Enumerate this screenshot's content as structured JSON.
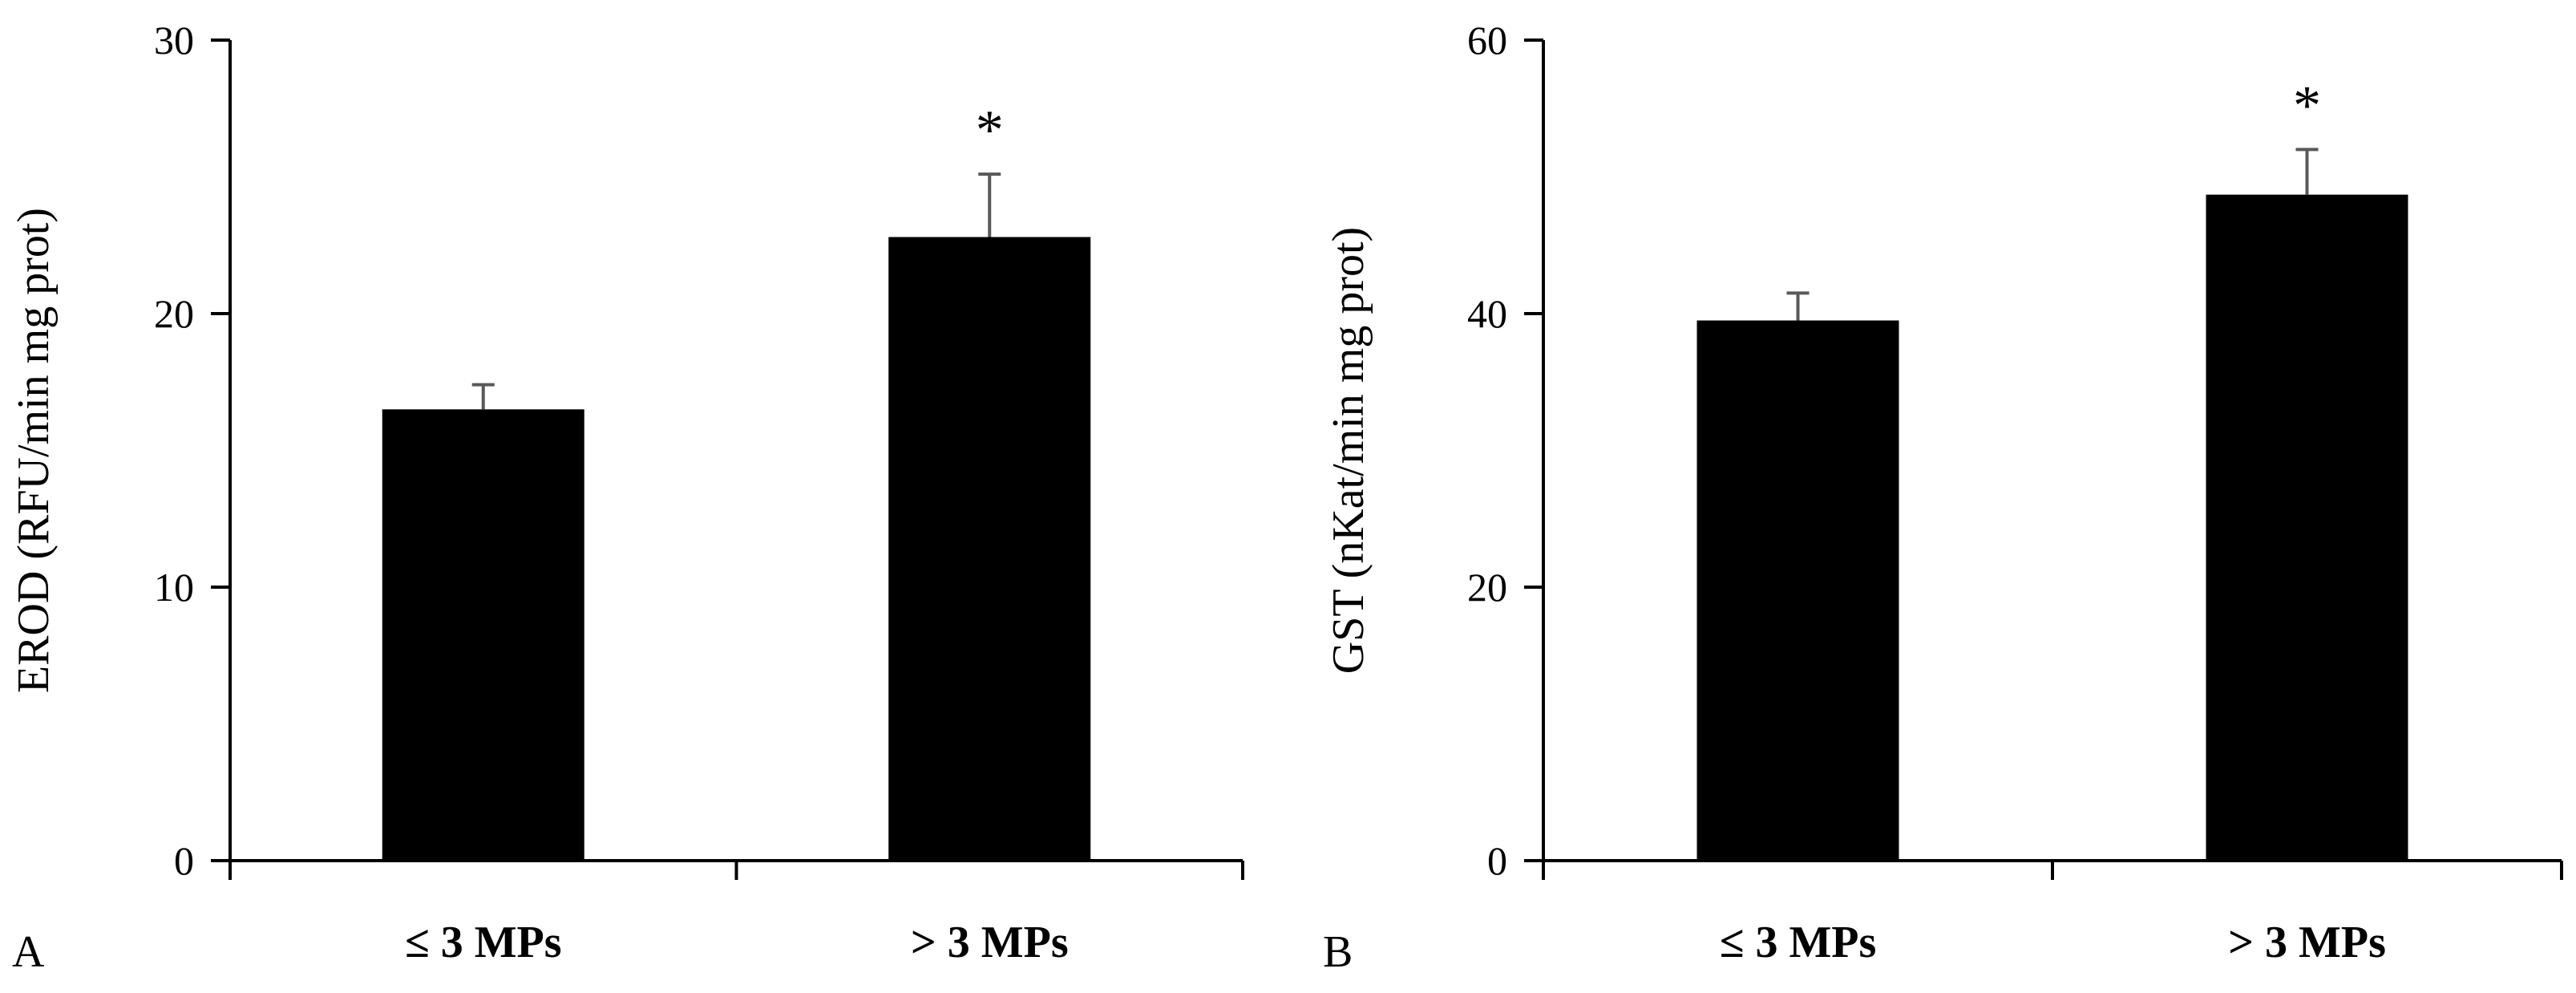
{
  "chart_data": [
    {
      "type": "bar",
      "panel_label": "A",
      "ylabel": "EROD (RFU/min mg prot)",
      "categories": [
        "≤ 3 MPs",
        "> 3 MPs"
      ],
      "values": [
        16.5,
        22.8
      ],
      "errors": [
        0.9,
        2.3
      ],
      "annotations": [
        "",
        "*"
      ],
      "ylim": [
        0,
        30
      ],
      "yticks": [
        0,
        10,
        20,
        30
      ],
      "bar_color": "#000000",
      "error_color": "#595959"
    },
    {
      "type": "bar",
      "panel_label": "B",
      "ylabel": "GST (nKat/min mg prot)",
      "categories": [
        "≤ 3 MPs",
        "> 3 MPs"
      ],
      "values": [
        39.5,
        48.7
      ],
      "errors": [
        2.0,
        3.3
      ],
      "annotations": [
        "",
        "*"
      ],
      "ylim": [
        0,
        60
      ],
      "yticks": [
        0,
        20,
        40,
        60
      ],
      "bar_color": "#000000",
      "error_color": "#595959"
    }
  ]
}
